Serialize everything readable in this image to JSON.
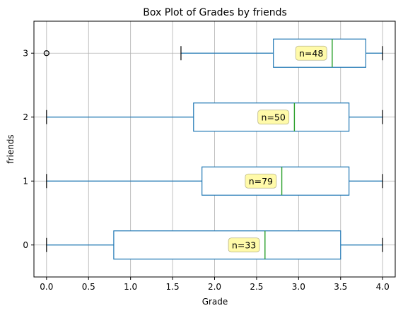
{
  "chart_data": {
    "type": "box",
    "title": "Box Plot of Grades by friends",
    "xlabel": "Grade",
    "ylabel": "friends",
    "xlim": [
      -0.15,
      4.15
    ],
    "ylim": [
      -0.5,
      3.5
    ],
    "xticks": [
      0.0,
      0.5,
      1.0,
      1.5,
      2.0,
      2.5,
      3.0,
      3.5,
      4.0
    ],
    "xtick_labels": [
      "0.0",
      "0.5",
      "1.0",
      "1.5",
      "2.0",
      "2.5",
      "3.0",
      "3.5",
      "4.0"
    ],
    "grid": true,
    "colors": {
      "box": "#1f77b4",
      "median": "#2ca02c",
      "annotation_fill": "#fffaa0"
    },
    "groups": [
      {
        "category": "0",
        "whisker_low": 0.0,
        "q1": 0.8,
        "median": 2.6,
        "q3": 3.5,
        "whisker_high": 4.0,
        "fliers": [],
        "n": 33,
        "n_label": "n=33",
        "n_x": 2.35
      },
      {
        "category": "1",
        "whisker_low": 0.0,
        "q1": 1.85,
        "median": 2.8,
        "q3": 3.6,
        "whisker_high": 4.0,
        "fliers": [],
        "n": 79,
        "n_label": "n=79",
        "n_x": 2.55
      },
      {
        "category": "2",
        "whisker_low": 0.0,
        "q1": 1.75,
        "median": 2.95,
        "q3": 3.6,
        "whisker_high": 4.0,
        "fliers": [],
        "n": 50,
        "n_label": "n=50",
        "n_x": 2.7
      },
      {
        "category": "3",
        "whisker_low": 1.6,
        "q1": 2.7,
        "median": 3.4,
        "q3": 3.8,
        "whisker_high": 4.0,
        "fliers": [
          0.0
        ],
        "n": 48,
        "n_label": "n=48",
        "n_x": 3.15
      }
    ]
  }
}
